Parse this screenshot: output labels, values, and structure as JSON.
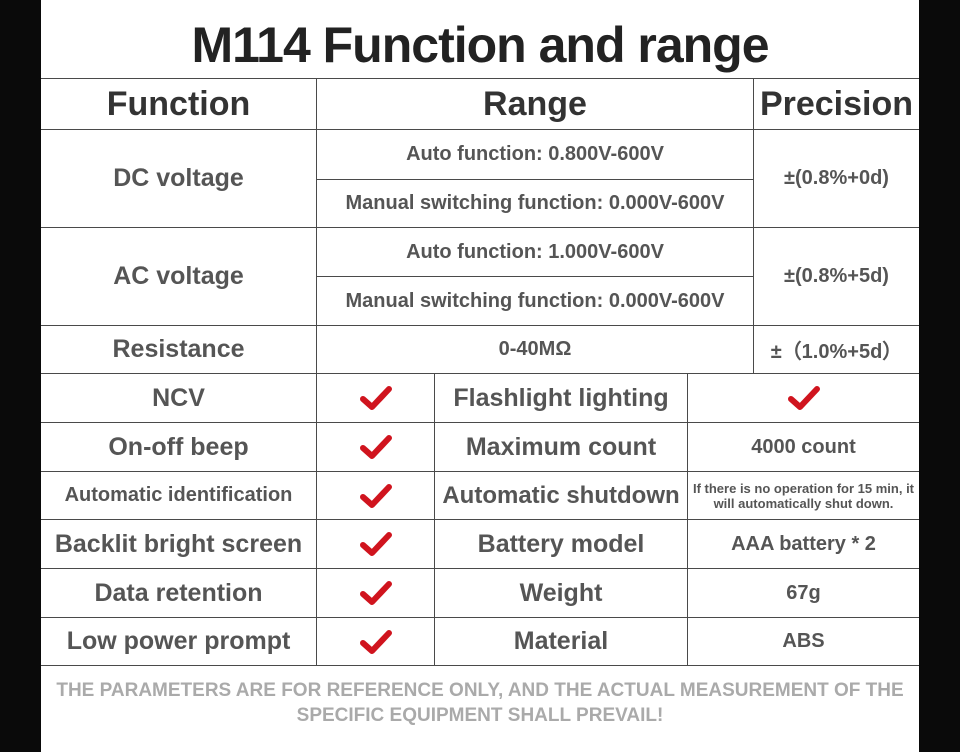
{
  "title": "M114 Function and range",
  "headers": {
    "function": "Function",
    "range": "Range",
    "precision": "Precision"
  },
  "dc": {
    "label": "DC voltage",
    "auto": "Auto function: 0.800V-600V",
    "manual": "Manual switching function: 0.000V-600V",
    "precision": "±(0.8%+0d)"
  },
  "ac": {
    "label": "AC voltage",
    "auto": "Auto function: 1.000V-600V",
    "manual": "Manual switching function: 0.000V-600V",
    "precision": "±(0.8%+5d)"
  },
  "resistance": {
    "label": "Resistance",
    "range": "0-40MΩ",
    "precision": "±（1.0%+5d）"
  },
  "features": [
    {
      "name": "NCV",
      "supported": true,
      "spec_name": "Flashlight lighting",
      "spec_value": "",
      "spec_check": true
    },
    {
      "name": "On-off beep",
      "supported": true,
      "spec_name": "Maximum count",
      "spec_value": "4000 count",
      "spec_check": false
    },
    {
      "name": "Automatic identification",
      "supported": true,
      "spec_name": "Automatic shutdown",
      "spec_value": "If there is no operation for 15 min, it will automatically shut down.",
      "spec_check": false
    },
    {
      "name": "Backlit bright screen",
      "supported": true,
      "spec_name": "Battery model",
      "spec_value": "AAA battery * 2",
      "spec_check": false
    },
    {
      "name": "Data retention",
      "supported": true,
      "spec_name": "Weight",
      "spec_value": "67g",
      "spec_check": false
    },
    {
      "name": "Low power prompt",
      "supported": true,
      "spec_name": "Material",
      "spec_value": "ABS",
      "spec_check": false
    }
  ],
  "footer": "THE PARAMETERS ARE FOR REFERENCE ONLY, AND THE ACTUAL MEASUREMENT OF THE SPECIFIC EQUIPMENT SHALL PREVAIL!",
  "colors": {
    "check": "#d0141e",
    "border": "#4a4a4a",
    "text": "#555555",
    "footer": "#aaaaaa",
    "background": "#0a0a0a"
  }
}
